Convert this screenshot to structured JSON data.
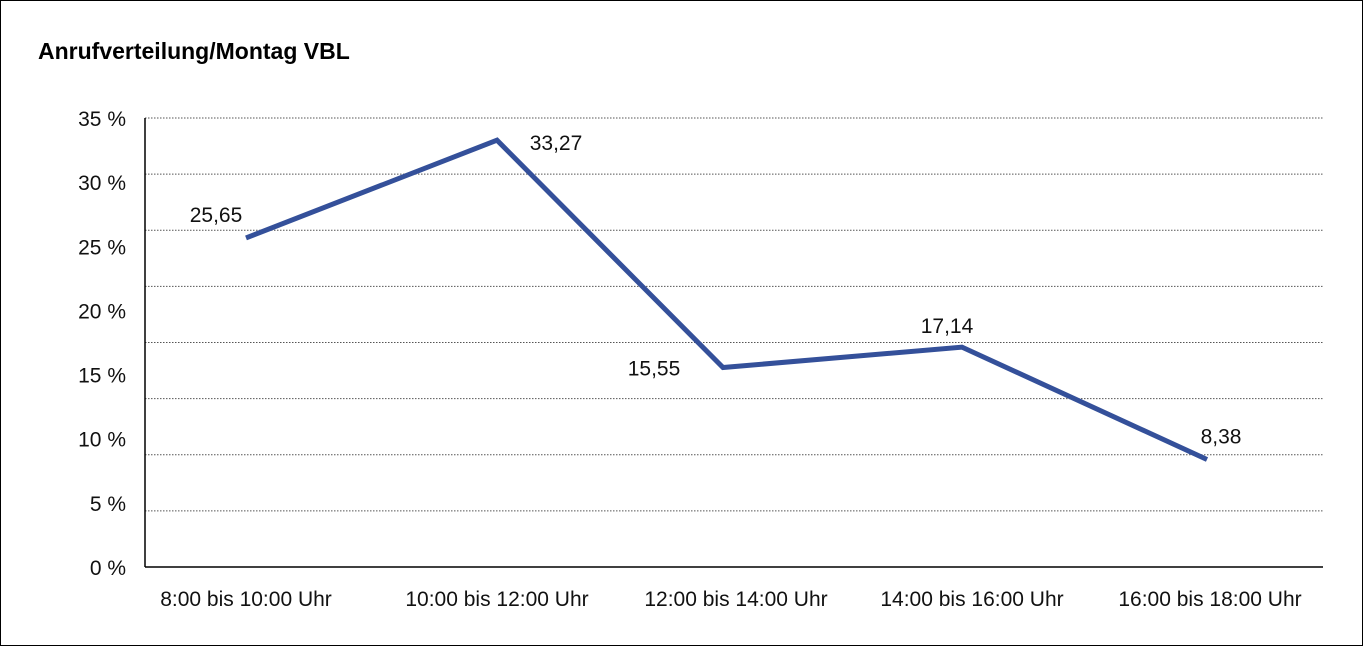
{
  "chart_data": {
    "type": "line",
    "title": "Anrufverteilung/Montag VBL",
    "xlabel": "",
    "ylabel": "",
    "categories": [
      "8:00 bis 10:00 Uhr",
      "10:00 bis 12:00 Uhr",
      "12:00 bis 14:00 Uhr",
      "14:00 bis 16:00 Uhr",
      "16:00 bis 18:00 Uhr"
    ],
    "values": [
      25.65,
      33.27,
      15.55,
      17.14,
      8.38
    ],
    "data_labels": [
      "25,65",
      "33,27",
      "15,55",
      "17,14",
      "8,38"
    ],
    "ylim": [
      0,
      35
    ],
    "yticks": [
      0,
      5,
      10,
      15,
      20,
      25,
      30,
      35
    ],
    "ytick_labels": [
      "0 %",
      "5 %",
      "10 %",
      "15 %",
      "20 %",
      "25 %",
      "30 %",
      "35 %"
    ],
    "grid": true,
    "legend": "none",
    "line_color": "#34509a"
  }
}
